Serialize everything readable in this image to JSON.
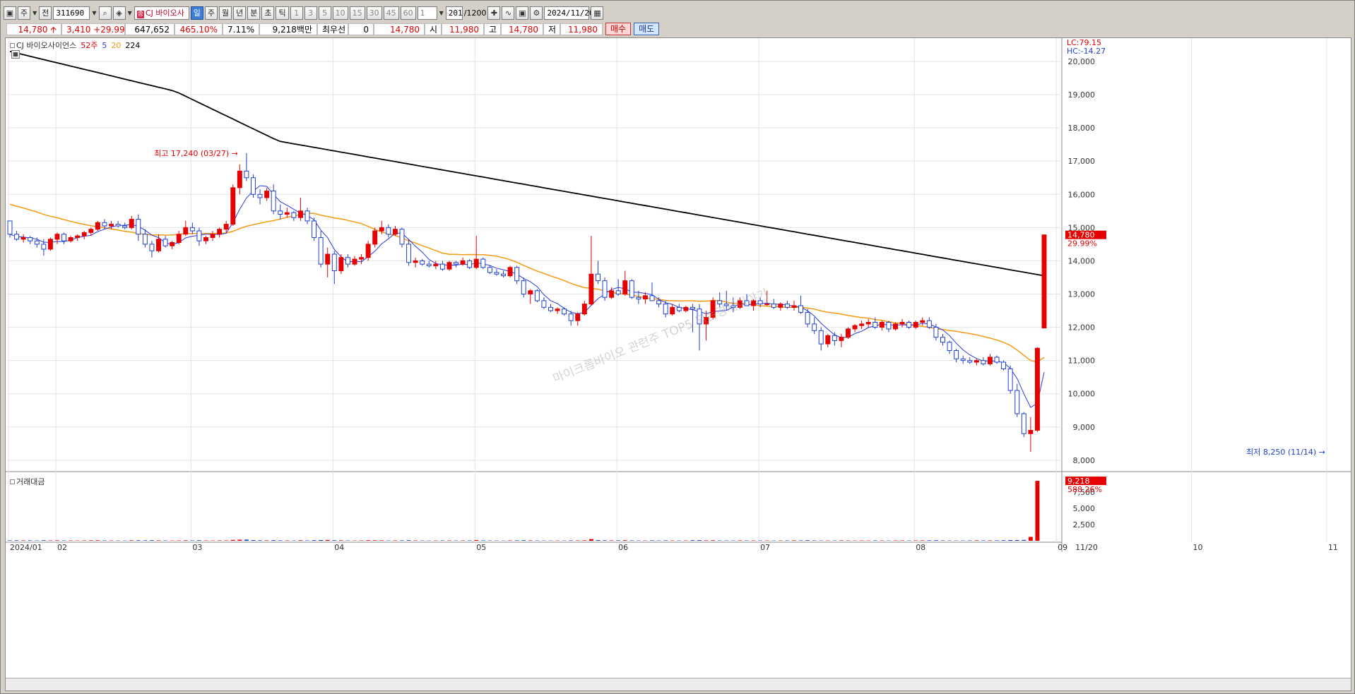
{
  "toolbar": {
    "period_btn": "주",
    "prev_btn": "전",
    "code": "311690",
    "stock_tag": "종",
    "stock_name": "CJ 바이오사",
    "periods": [
      "일",
      "주",
      "월",
      "년",
      "분",
      "초",
      "틱"
    ],
    "active_period": "일",
    "intervals": [
      "1",
      "3",
      "5",
      "10",
      "15",
      "30",
      "45",
      "60"
    ],
    "count_value": "1",
    "bars_display": "201",
    "bars_total": "/1200",
    "date_value": "2024/11/20"
  },
  "quote": {
    "price": "14,780",
    "change": "3,410",
    "change_pct": "+29.99%",
    "volume": "647,652",
    "volume_ratio": "465.10%",
    "turnover_rate": "7.11%",
    "amount": "9,218백만",
    "best_quote_label": "최우선",
    "best_quote_value": "0",
    "price2": "14,780",
    "open_label": "시",
    "open": "11,980",
    "high_label": "고",
    "high": "14,780",
    "low_label": "저",
    "low": "11,980",
    "buy_label": "매수",
    "sell_label": "매도"
  },
  "legend": {
    "name": "CJ 바이오사이언스",
    "ma_52": "52주",
    "ma_5": "5",
    "ma_20": "20",
    "ma_224": "224",
    "volume_label": "거래대금"
  },
  "annotations": {
    "high": "최고 17,240 (03/27)",
    "low": "최저 8,250 (11/14)",
    "lc": "LC:79.15",
    "hc": "HC:-14.27",
    "last_price": "14,780",
    "last_pct": "29.99%",
    "vol_last": "9,218",
    "vol_pct": "588.26%",
    "watermark": "마이크롭바이오 관련주 TOP5 되는경제이야기"
  },
  "colors": {
    "up": "#e60000",
    "down": "#1f3fd0",
    "ma5": "#2b3be0",
    "ma20": "#f49a14",
    "ma224": "#000000"
  },
  "chart_data": {
    "type": "candlestick",
    "y_ticks": [
      8000,
      9000,
      10000,
      11000,
      12000,
      13000,
      14000,
      15000,
      16000,
      17000,
      18000,
      19000,
      20000
    ],
    "y_tick_labels": [
      "8,000",
      "9,000",
      "10,000",
      "11,000",
      "12,000",
      "13,000",
      "14,000",
      "15,000",
      "16,000",
      "17,000",
      "18,000",
      "19,000",
      "20,000"
    ],
    "ylim": [
      7700,
      20700
    ],
    "x_labels": [
      "2024/01",
      "02",
      "03",
      "04",
      "05",
      "06",
      "07",
      "08",
      "09",
      "10",
      "11",
      "11/20"
    ],
    "vol_ticks": [
      "2,500",
      "5,000",
      "7,500"
    ],
    "ohlc": [
      [
        15200,
        15200,
        14700,
        14800
      ],
      [
        14800,
        14900,
        14600,
        14650
      ],
      [
        14650,
        14800,
        14550,
        14700
      ],
      [
        14700,
        14750,
        14500,
        14600
      ],
      [
        14600,
        14700,
        14400,
        14500
      ],
      [
        14500,
        14650,
        14150,
        14350
      ],
      [
        14350,
        14700,
        14300,
        14650
      ],
      [
        14650,
        14850,
        14500,
        14800
      ],
      [
        14800,
        14850,
        14500,
        14600
      ],
      [
        14600,
        14750,
        14550,
        14700
      ],
      [
        14700,
        14800,
        14600,
        14750
      ],
      [
        14750,
        14900,
        14650,
        14850
      ],
      [
        14850,
        15000,
        14750,
        14950
      ],
      [
        14950,
        15200,
        14900,
        15150
      ],
      [
        15150,
        15250,
        14950,
        15050
      ],
      [
        15050,
        15200,
        14950,
        15100
      ],
      [
        15100,
        15200,
        15000,
        15050
      ],
      [
        15050,
        15150,
        14950,
        15000
      ],
      [
        15000,
        15350,
        14950,
        15250
      ],
      [
        15250,
        15400,
        14600,
        14800
      ],
      [
        14800,
        14950,
        14400,
        14500
      ],
      [
        14500,
        14600,
        14100,
        14300
      ],
      [
        14300,
        14800,
        14250,
        14650
      ],
      [
        14650,
        14750,
        14400,
        14450
      ],
      [
        14450,
        14600,
        14350,
        14550
      ],
      [
        14550,
        14900,
        14500,
        14800
      ],
      [
        14800,
        15200,
        14750,
        15000
      ],
      [
        15000,
        15150,
        14800,
        14900
      ],
      [
        14900,
        15000,
        14450,
        14600
      ],
      [
        14600,
        14750,
        14500,
        14700
      ],
      [
        14700,
        14900,
        14600,
        14800
      ],
      [
        14800,
        15000,
        14700,
        14950
      ],
      [
        14950,
        15200,
        14850,
        15100
      ],
      [
        15100,
        16300,
        15050,
        16200
      ],
      [
        16200,
        16900,
        16000,
        16700
      ],
      [
        16700,
        17240,
        16400,
        16500
      ],
      [
        16500,
        16600,
        15900,
        16000
      ],
      [
        16000,
        16150,
        15700,
        15900
      ],
      [
        15900,
        16200,
        15800,
        16100
      ],
      [
        16100,
        16300,
        15400,
        15500
      ],
      [
        15500,
        15700,
        15250,
        15400
      ],
      [
        15400,
        15600,
        15300,
        15450
      ],
      [
        15450,
        15500,
        15200,
        15300
      ],
      [
        15300,
        15900,
        15200,
        15500
      ],
      [
        15500,
        15600,
        15100,
        15200
      ],
      [
        15200,
        15300,
        14600,
        14700
      ],
      [
        14700,
        14900,
        13800,
        13900
      ],
      [
        13900,
        14400,
        13500,
        14200
      ],
      [
        14200,
        14300,
        13300,
        13700
      ],
      [
        13700,
        14200,
        13600,
        14100
      ],
      [
        14100,
        14200,
        13800,
        13900
      ],
      [
        13900,
        14150,
        13850,
        14050
      ],
      [
        14050,
        14200,
        13900,
        14100
      ],
      [
        14100,
        14600,
        14000,
        14500
      ],
      [
        14500,
        15000,
        14400,
        14900
      ],
      [
        14900,
        15200,
        14800,
        15000
      ],
      [
        15000,
        15100,
        14700,
        14800
      ],
      [
        14800,
        15050,
        14750,
        14950
      ],
      [
        14950,
        15000,
        14400,
        14500
      ],
      [
        14500,
        14650,
        13850,
        13950
      ],
      [
        13950,
        14100,
        13800,
        14000
      ],
      [
        14000,
        14050,
        13850,
        13900
      ],
      [
        13900,
        14000,
        13800,
        13850
      ],
      [
        13850,
        14000,
        13750,
        13900
      ],
      [
        13900,
        14000,
        13700,
        13750
      ],
      [
        13750,
        14000,
        13700,
        13950
      ],
      [
        13950,
        14000,
        13800,
        13900
      ],
      [
        13900,
        14100,
        13850,
        14000
      ],
      [
        14000,
        14050,
        13750,
        13800
      ],
      [
        13800,
        14750,
        13750,
        14050
      ],
      [
        14050,
        14100,
        13750,
        13800
      ],
      [
        13800,
        13850,
        13600,
        13650
      ],
      [
        13650,
        13750,
        13550,
        13600
      ],
      [
        13600,
        13700,
        13500,
        13550
      ],
      [
        13550,
        13850,
        13500,
        13800
      ],
      [
        13800,
        13850,
        13300,
        13400
      ],
      [
        13400,
        13500,
        12900,
        13000
      ],
      [
        13000,
        13150,
        12700,
        13100
      ],
      [
        13100,
        13150,
        12750,
        12800
      ],
      [
        12800,
        12900,
        12550,
        12600
      ],
      [
        12600,
        12700,
        12450,
        12500
      ],
      [
        12500,
        12600,
        12400,
        12550
      ],
      [
        12550,
        12600,
        12350,
        12400
      ],
      [
        12400,
        12500,
        12050,
        12200
      ],
      [
        12200,
        12450,
        12050,
        12400
      ],
      [
        12400,
        12800,
        12350,
        12700
      ],
      [
        12700,
        14750,
        12650,
        13600
      ],
      [
        13600,
        14000,
        13300,
        13400
      ],
      [
        13400,
        13500,
        12800,
        12900
      ],
      [
        12900,
        13200,
        12850,
        13100
      ],
      [
        13100,
        13450,
        12950,
        13000
      ],
      [
        13000,
        13700,
        12950,
        13400
      ],
      [
        13400,
        13450,
        12850,
        12900
      ],
      [
        12900,
        13100,
        12700,
        12850
      ],
      [
        12850,
        13050,
        12700,
        12950
      ],
      [
        12950,
        13350,
        12800,
        12800
      ],
      [
        12800,
        12900,
        12600,
        12700
      ],
      [
        12700,
        12800,
        12300,
        12400
      ],
      [
        12400,
        12700,
        12350,
        12600
      ],
      [
        12600,
        12700,
        12450,
        12500
      ],
      [
        12500,
        12650,
        12450,
        12600
      ],
      [
        12600,
        12700,
        11850,
        12550
      ],
      [
        12550,
        12700,
        11300,
        12100
      ],
      [
        12100,
        12500,
        11600,
        12300
      ],
      [
        12300,
        12900,
        12250,
        12800
      ],
      [
        12800,
        13050,
        12600,
        12700
      ],
      [
        12700,
        13100,
        12500,
        12650
      ],
      [
        12650,
        12900,
        12450,
        12600
      ],
      [
        12600,
        12900,
        12550,
        12800
      ],
      [
        12800,
        13000,
        12700,
        12650
      ],
      [
        12650,
        12850,
        12500,
        12800
      ],
      [
        12800,
        12900,
        12600,
        12700
      ],
      [
        12700,
        13100,
        12650,
        12700
      ],
      [
        12700,
        12850,
        12550,
        12600
      ],
      [
        12600,
        12750,
        12500,
        12700
      ],
      [
        12700,
        12800,
        12550,
        12600
      ],
      [
        12600,
        12800,
        12500,
        12650
      ],
      [
        12650,
        12950,
        12400,
        12450
      ],
      [
        12450,
        12550,
        12000,
        12100
      ],
      [
        12100,
        12300,
        11800,
        11900
      ],
      [
        11900,
        12000,
        11300,
        11500
      ],
      [
        11500,
        11800,
        11400,
        11750
      ],
      [
        11750,
        11850,
        11450,
        11600
      ],
      [
        11600,
        11800,
        11400,
        11700
      ],
      [
        11700,
        12000,
        11650,
        11950
      ],
      [
        11950,
        12100,
        11850,
        12050
      ],
      [
        12050,
        12200,
        11950,
        12100
      ],
      [
        12100,
        12250,
        12000,
        12150
      ],
      [
        12150,
        12300,
        11950,
        12000
      ],
      [
        12000,
        12200,
        11900,
        12150
      ],
      [
        12150,
        12200,
        11850,
        11950
      ],
      [
        11950,
        12150,
        11900,
        12100
      ],
      [
        12100,
        12250,
        12000,
        12150
      ],
      [
        12150,
        12200,
        11950,
        12000
      ],
      [
        12000,
        12200,
        11950,
        12150
      ],
      [
        12150,
        12300,
        12050,
        12200
      ],
      [
        12200,
        12300,
        11950,
        12000
      ],
      [
        12000,
        12100,
        11600,
        11700
      ],
      [
        11700,
        11800,
        11450,
        11550
      ],
      [
        11550,
        11600,
        11200,
        11300
      ],
      [
        11300,
        11350,
        10950,
        11050
      ],
      [
        11050,
        11150,
        10900,
        11000
      ],
      [
        11000,
        11100,
        10900,
        10950
      ],
      [
        10950,
        11050,
        10850,
        11000
      ],
      [
        11000,
        11100,
        10850,
        10900
      ],
      [
        10900,
        11200,
        10850,
        11100
      ],
      [
        11100,
        11150,
        10900,
        10950
      ],
      [
        10950,
        11000,
        10700,
        10750
      ],
      [
        10750,
        10850,
        10000,
        10100
      ],
      [
        10100,
        10300,
        9300,
        9400
      ],
      [
        9400,
        9450,
        8700,
        8800
      ],
      [
        8800,
        9300,
        8250,
        8900
      ],
      [
        8900,
        11400,
        8850,
        11370
      ],
      [
        11980,
        14780,
        11980,
        14780
      ]
    ],
    "volume": [
      70,
      80,
      60,
      65,
      55,
      90,
      60,
      70,
      60,
      55,
      50,
      60,
      75,
      80,
      60,
      55,
      50,
      45,
      70,
      80,
      70,
      90,
      65,
      55,
      50,
      60,
      75,
      60,
      90,
      55,
      50,
      60,
      65,
      140,
      170,
      180,
      110,
      80,
      70,
      95,
      70,
      55,
      50,
      85,
      60,
      100,
      120,
      130,
      90,
      70,
      55,
      50,
      60,
      90,
      80,
      70,
      55,
      60,
      70,
      95,
      55,
      50,
      45,
      50,
      60,
      55,
      50,
      55,
      60,
      120,
      60,
      55,
      50,
      45,
      60,
      70,
      90,
      60,
      55,
      50,
      45,
      45,
      50,
      70,
      60,
      80,
      260,
      100,
      80,
      60,
      70,
      90,
      65,
      55,
      50,
      70,
      55,
      70,
      55,
      50,
      55,
      90,
      100,
      70,
      80,
      60,
      55,
      50,
      65,
      55,
      60,
      55,
      50,
      45,
      55,
      60,
      70,
      65,
      90,
      60,
      50,
      50,
      55,
      60,
      55,
      50,
      55,
      50,
      60,
      55,
      50,
      55,
      60,
      50,
      60,
      70,
      80,
      90,
      60,
      55,
      50,
      55,
      60,
      70,
      65,
      60,
      70,
      90,
      120,
      110,
      140,
      600,
      9218
    ]
  }
}
